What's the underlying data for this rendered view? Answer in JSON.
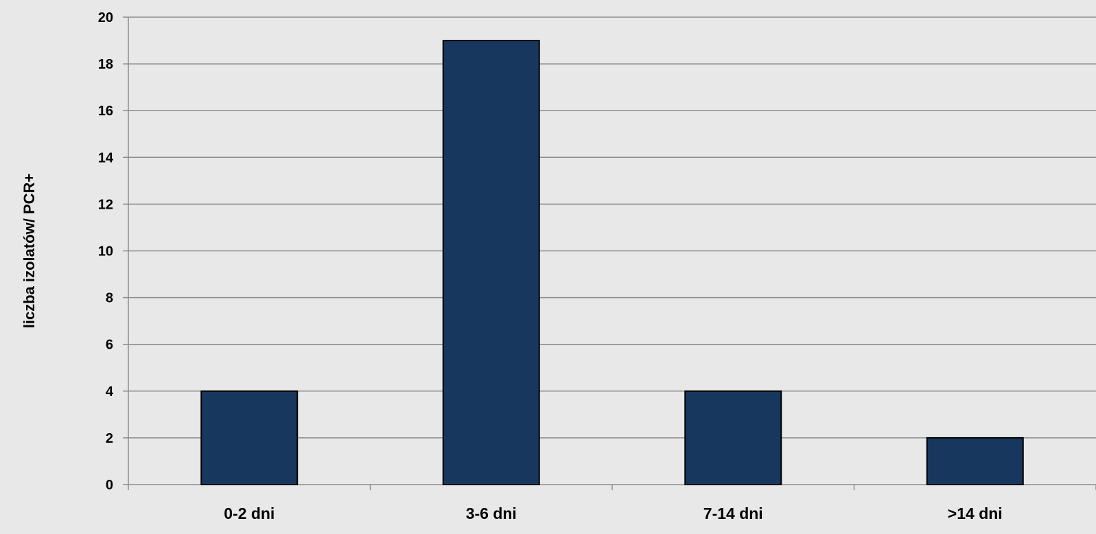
{
  "chart_data": {
    "type": "bar",
    "title": "",
    "xlabel": "",
    "ylabel": "liczba izolatów/ PCR+",
    "categories": [
      "0-2 dni",
      "3-6 dni",
      "7-14 dni",
      ">14 dni"
    ],
    "values": [
      4,
      19,
      4,
      2
    ],
    "ylim": [
      0,
      20
    ],
    "yticks": [
      0,
      2,
      4,
      6,
      8,
      10,
      12,
      14,
      16,
      18,
      20
    ],
    "grid": true,
    "legend": "none",
    "bar_color": "#17375e",
    "bar_edge_color": "#000000",
    "background_color": "#e8e8e8",
    "grid_color": "#8c8c8c"
  }
}
